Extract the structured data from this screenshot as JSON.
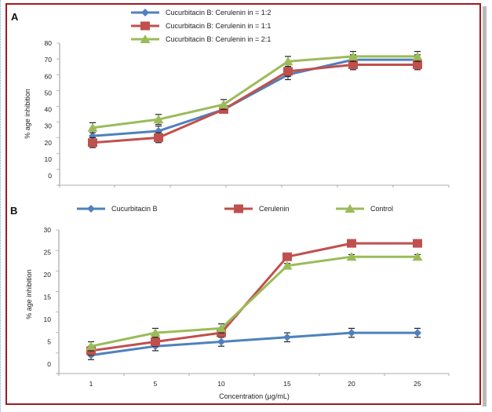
{
  "figure": {
    "border_color": "#9b1c1f"
  },
  "chart_data": [
    {
      "panel": "A",
      "type": "line",
      "title": "",
      "xlabel": "",
      "ylabel": "% age inhibition",
      "ylim": [
        0,
        80
      ],
      "yticks": [
        "0",
        "10",
        "20",
        "30",
        "40",
        "50",
        "60",
        "70",
        "80"
      ],
      "x": [
        1,
        5,
        10,
        15,
        20,
        25
      ],
      "xtick_labels": [],
      "grid": false,
      "legend_position": "top",
      "series": [
        {
          "name": "Cucurbitacin B: Cerulenin in = 1:2",
          "color": "#4f81bd",
          "marker": "diamond",
          "values": [
            24,
            27,
            40,
            61,
            70,
            70
          ],
          "error": [
            3,
            3,
            2,
            3,
            3,
            3
          ]
        },
        {
          "name": "Cucurbitacin B: Cerulenin in = 1:1",
          "color": "#c0504d",
          "marker": "square",
          "values": [
            20,
            23,
            40,
            63,
            67,
            67
          ],
          "error": [
            3,
            3,
            2,
            3,
            3,
            3
          ]
        },
        {
          "name": "Cucurbitacin B: Cerulenin in = 2:1",
          "color": "#9bbb59",
          "marker": "triangle",
          "values": [
            29,
            34,
            43,
            69,
            72,
            72
          ],
          "error": [
            3,
            3,
            3,
            3,
            3,
            3
          ]
        }
      ]
    },
    {
      "panel": "B",
      "type": "line",
      "title": "",
      "xlabel": "Concentration (µg/mL)",
      "ylabel": "% age inhibition",
      "ylim": [
        0,
        30
      ],
      "yticks": [
        "0",
        "5",
        "10",
        "15",
        "20",
        "25",
        "30"
      ],
      "x": [
        1,
        5,
        10,
        15,
        20,
        25
      ],
      "xtick_labels": [
        "1",
        "5",
        "10",
        "15",
        "20",
        "25"
      ],
      "grid": false,
      "legend_position": "top",
      "series": [
        {
          "name": "Cucurbitacin B",
          "color": "#4f81bd",
          "marker": "diamond",
          "values": [
            2,
            4,
            5,
            6,
            7,
            7
          ],
          "error": [
            1,
            1,
            1,
            1,
            1,
            1
          ]
        },
        {
          "name": "Cerulenin",
          "color": "#c0504d",
          "marker": "square",
          "values": [
            3,
            5,
            7,
            24,
            27,
            27
          ],
          "error": [
            1,
            1,
            1,
            0.5,
            0.5,
            0.5
          ]
        },
        {
          "name": "Control",
          "color": "#9bbb59",
          "marker": "triangle",
          "values": [
            4,
            7,
            8,
            22,
            24,
            24
          ],
          "error": [
            1,
            1,
            1,
            0.5,
            0.5,
            0.5
          ]
        }
      ]
    }
  ]
}
